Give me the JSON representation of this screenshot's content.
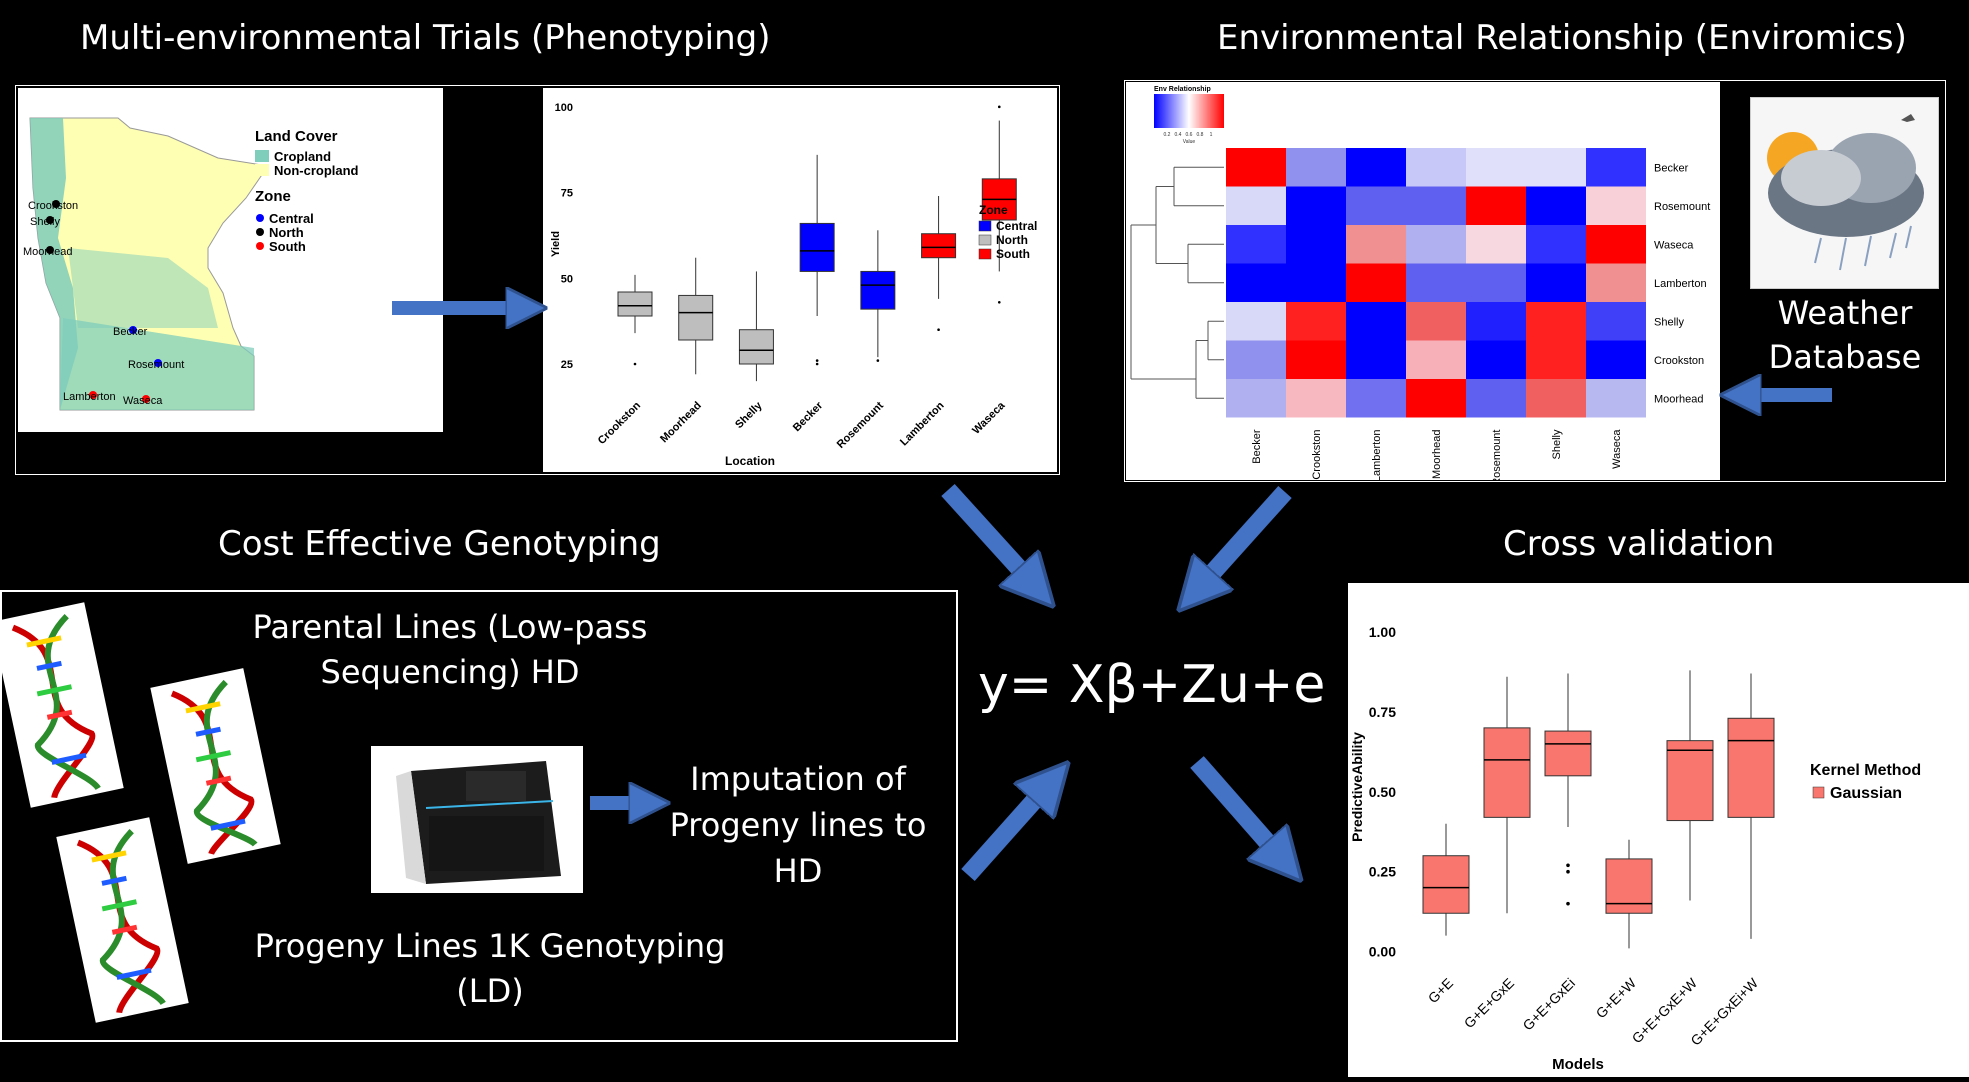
{
  "sections": {
    "phenotyping": "Multi-environmental Trials  (Phenotyping)",
    "enviromics": "Environmental Relationship (Enviromics)",
    "genotyping": "Cost Effective Genotyping",
    "cross_validation": "Cross validation"
  },
  "map": {
    "legend_title_cover": "Land Cover",
    "cover_items": [
      {
        "label": "Cropland",
        "color": "#7fcdbb"
      },
      {
        "label": "Non-cropland",
        "color": "#ffffb3"
      }
    ],
    "legend_title_zone": "Zone",
    "zone_items": [
      {
        "label": "Central",
        "color": "#0000ff"
      },
      {
        "label": "North",
        "color": "#000000"
      },
      {
        "label": "South",
        "color": "#ff0000"
      }
    ],
    "sites": [
      {
        "label": "Crookston",
        "zone": "North"
      },
      {
        "label": "Shelly",
        "zone": "North"
      },
      {
        "label": "Moorhead",
        "zone": "North"
      },
      {
        "label": "Becker",
        "zone": "Central"
      },
      {
        "label": "Rosemount",
        "zone": "Central"
      },
      {
        "label": "Lamberton",
        "zone": "South"
      },
      {
        "label": "Waseca",
        "zone": "South"
      }
    ]
  },
  "chart_data": [
    {
      "type": "box",
      "xlabel": "Location",
      "ylabel": "Yield",
      "yticks": [
        25,
        50,
        75,
        100
      ],
      "ylim": [
        18,
        102
      ],
      "legend_title": "Zone",
      "legend": [
        {
          "label": "Central",
          "color": "#0000ff"
        },
        {
          "label": "North",
          "color": "#bebebe"
        },
        {
          "label": "South",
          "color": "#ff0000"
        }
      ],
      "categories": [
        "Crookston",
        "Moorhead",
        "Shelly",
        "Becker",
        "Rosemount",
        "Lamberton",
        "Waseca"
      ],
      "boxes": [
        {
          "zone": "North",
          "min": 34,
          "q1": 39,
          "median": 42,
          "q3": 46,
          "max": 51,
          "outliers": [
            25
          ]
        },
        {
          "zone": "North",
          "min": 22,
          "q1": 32,
          "median": 40,
          "q3": 45,
          "max": 56,
          "outliers": []
        },
        {
          "zone": "North",
          "min": 20,
          "q1": 25,
          "median": 29,
          "q3": 35,
          "max": 52,
          "outliers": []
        },
        {
          "zone": "Central",
          "min": 39,
          "q1": 52,
          "median": 58,
          "q3": 66,
          "max": 86,
          "outliers": [
            25,
            26
          ]
        },
        {
          "zone": "Central",
          "min": 27,
          "q1": 41,
          "median": 48,
          "q3": 52,
          "max": 64,
          "outliers": [
            26
          ]
        },
        {
          "zone": "South",
          "min": 44,
          "q1": 56,
          "median": 59,
          "q3": 63,
          "max": 74,
          "outliers": [
            35
          ]
        },
        {
          "zone": "South",
          "min": 52,
          "q1": 67,
          "median": 73,
          "q3": 79,
          "max": 96,
          "outliers": [
            43,
            100
          ]
        }
      ]
    },
    {
      "type": "heatmap",
      "legend_title": "Env Relationship",
      "legend_ticks": [
        "0.2",
        "0.4",
        "0.6",
        "0.8",
        "1"
      ],
      "legend_axis_label": "Value",
      "rows": [
        "Becker",
        "Rosemount",
        "Waseca",
        "Lamberton",
        "Shelly",
        "Crookston",
        "Moorhead"
      ],
      "cols": [
        "Becker",
        "Crookston",
        "Lamberton",
        "Moorhead",
        "Rosemount",
        "Shelly",
        "Waseca"
      ],
      "colors": [
        [
          "#ff0000",
          "#9090ee",
          "#0000ff",
          "#c8c8f8",
          "#e0e0fa",
          "#e0e0fa",
          "#3030ff"
        ],
        [
          "#d8d8f8",
          "#0000ff",
          "#6060f0",
          "#6060f0",
          "#ff0000",
          "#0000ff",
          "#f8d0d8"
        ],
        [
          "#3030ff",
          "#0000ff",
          "#f09090",
          "#b0b0f0",
          "#f8d8e0",
          "#3030ff",
          "#ff0000"
        ],
        [
          "#0000ff",
          "#0000ff",
          "#ff0000",
          "#6060f0",
          "#6060f0",
          "#0000ff",
          "#f09090"
        ],
        [
          "#d8d8f8",
          "#ff2020",
          "#0000ff",
          "#f06060",
          "#2020ff",
          "#ff2020",
          "#4040f8"
        ],
        [
          "#9090ee",
          "#ff0000",
          "#0000ff",
          "#f8b0b8",
          "#0000ff",
          "#ff2020",
          "#0000ff"
        ],
        [
          "#b0b0f0",
          "#f8b8c0",
          "#7070f0",
          "#ff0000",
          "#6060f0",
          "#f06060",
          "#b8b8f0"
        ]
      ]
    },
    {
      "type": "box",
      "xlabel": "Models",
      "ylabel": "PredictiveAbility",
      "yticks": [
        "0.00",
        "0.25",
        "0.50",
        "0.75",
        "1.00"
      ],
      "ylim": [
        -0.02,
        1.05
      ],
      "legend_title": "Kernel Method",
      "legend": [
        {
          "label": "Gaussian",
          "color": "#f8766d"
        }
      ],
      "categories": [
        "G+E",
        "G+E+GxE",
        "G+E+GxEi",
        "G+E+W",
        "G+E+GxE+W",
        "G+E+GxEi+W"
      ],
      "boxes": [
        {
          "min": 0.05,
          "q1": 0.12,
          "median": 0.2,
          "q3": 0.3,
          "max": 0.4,
          "outliers": []
        },
        {
          "min": 0.12,
          "q1": 0.42,
          "median": 0.6,
          "q3": 0.7,
          "max": 0.86,
          "outliers": []
        },
        {
          "min": 0.39,
          "q1": 0.55,
          "median": 0.65,
          "q3": 0.69,
          "max": 0.87,
          "outliers": [
            0.15,
            0.25,
            0.27
          ]
        },
        {
          "min": 0.01,
          "q1": 0.12,
          "median": 0.15,
          "q3": 0.29,
          "max": 0.35,
          "outliers": []
        },
        {
          "min": 0.16,
          "q1": 0.41,
          "median": 0.63,
          "q3": 0.66,
          "max": 0.88,
          "outliers": []
        },
        {
          "min": 0.04,
          "q1": 0.42,
          "median": 0.66,
          "q3": 0.73,
          "max": 0.87,
          "outliers": []
        }
      ]
    }
  ],
  "enviromics": {
    "weather_label_line1": "Weather",
    "weather_label_line2": "Database"
  },
  "genotyping": {
    "parental_line1": "Parental Lines (Low-pass",
    "parental_line2": "Sequencing) HD",
    "imputation_line1": "Imputation of",
    "imputation_line2": "Progeny lines to",
    "imputation_line3": "HD",
    "progeny_line1": "Progeny Lines 1K Genotyping",
    "progeny_line2": "(LD)"
  },
  "model": {
    "equation": "y= Xβ+Zu+e"
  },
  "theme": {
    "arrow_color": "#4472c4",
    "background": "#000000"
  }
}
